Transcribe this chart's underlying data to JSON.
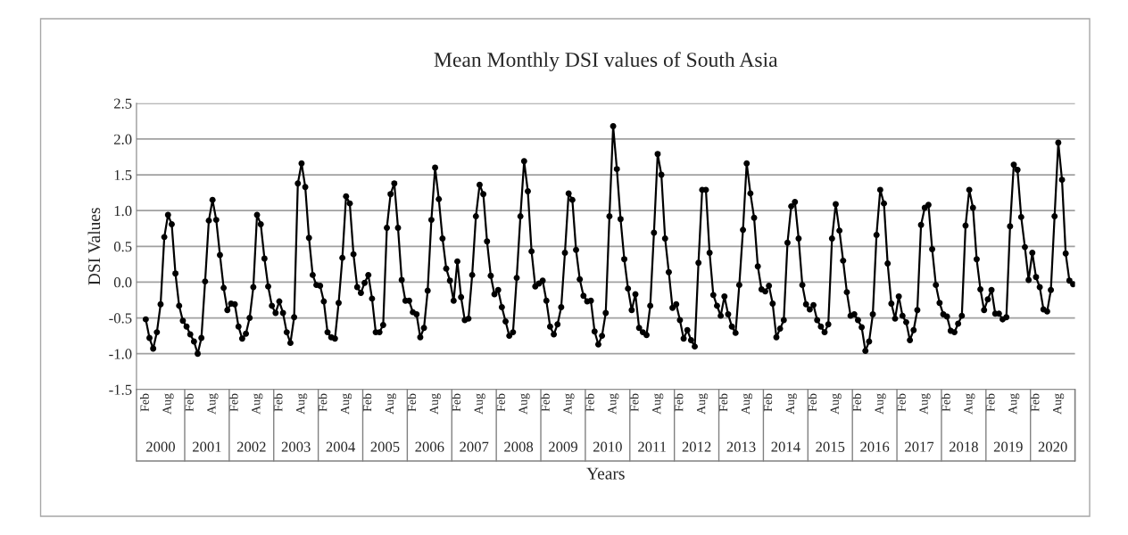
{
  "chart_data": {
    "type": "line",
    "title": "Mean Monthly DSI values of South Asia",
    "xlabel": "Years",
    "ylabel": "DSI Values",
    "categories": [
      "Feb",
      null,
      null,
      null,
      null,
      null,
      "Aug",
      null,
      null,
      null,
      null,
      null,
      "Feb",
      null,
      null,
      null,
      null,
      null,
      "Aug",
      null,
      null,
      null,
      null,
      null,
      "Feb",
      null,
      null,
      null,
      null,
      null,
      "Aug",
      null,
      null,
      null,
      null,
      null,
      "Feb",
      null,
      null,
      null,
      null,
      null,
      "Aug",
      null,
      null,
      null,
      null,
      null,
      "Feb",
      null,
      null,
      null,
      null,
      null,
      "Aug",
      null,
      null,
      null,
      null,
      null,
      "Feb",
      null,
      null,
      null,
      null,
      null,
      "Aug",
      null,
      null,
      null,
      null,
      null,
      "Feb",
      null,
      null,
      null,
      null,
      null,
      "Aug",
      null,
      null,
      null,
      null,
      null,
      "Feb",
      null,
      null,
      null,
      null,
      null,
      "Aug",
      null,
      null,
      null,
      null,
      null,
      "Feb",
      null,
      null,
      null,
      null,
      null,
      "Aug",
      null,
      null,
      null,
      null,
      null,
      "Feb",
      null,
      null,
      null,
      null,
      null,
      "Aug",
      null,
      null,
      null,
      null,
      null,
      "Feb",
      null,
      null,
      null,
      null,
      null,
      "Aug",
      null,
      null,
      null,
      null,
      null,
      "Feb",
      null,
      null,
      null,
      null,
      null,
      "Aug",
      null,
      null,
      null,
      null,
      null,
      "Feb",
      null,
      null,
      null,
      null,
      null,
      "Aug",
      null,
      null,
      null,
      null,
      null,
      "Feb",
      null,
      null,
      null,
      null,
      null,
      "Aug",
      null,
      null,
      null,
      null,
      null,
      "Feb",
      null,
      null,
      null,
      null,
      null,
      "Aug",
      null,
      null,
      null,
      null,
      null,
      "Feb",
      null,
      null,
      null,
      null,
      null,
      "Aug",
      null,
      null,
      null,
      null,
      null,
      "Feb",
      null,
      null,
      null,
      null,
      null,
      "Aug",
      null,
      null,
      null,
      null,
      null,
      "Feb",
      null,
      null,
      null,
      null,
      null,
      "Aug",
      null,
      null,
      null,
      null,
      null,
      "Feb",
      null,
      null,
      null,
      null,
      null,
      "Aug",
      null,
      null,
      null,
      null,
      null,
      "Feb",
      null,
      null,
      null,
      null,
      null,
      "Aug",
      null,
      null,
      null,
      null,
      null,
      "Feb",
      null,
      null,
      null,
      null,
      null,
      "Aug",
      null,
      null,
      null,
      null
    ],
    "series": [
      {
        "color": "#000000",
        "values": [
          -0.52,
          -0.78,
          -0.93,
          -0.7,
          -0.31,
          0.63,
          0.94,
          0.81,
          0.12,
          -0.33,
          -0.54,
          -0.62,
          -0.73,
          -0.83,
          -1.0,
          -0.78,
          0.01,
          0.86,
          1.15,
          0.87,
          0.38,
          -0.08,
          -0.39,
          -0.3,
          -0.31,
          -0.62,
          -0.79,
          -0.72,
          -0.5,
          -0.07,
          0.94,
          0.81,
          0.33,
          -0.06,
          -0.33,
          -0.43,
          -0.27,
          -0.43,
          -0.7,
          -0.85,
          -0.49,
          1.38,
          1.66,
          1.33,
          0.62,
          0.1,
          -0.04,
          -0.05,
          -0.27,
          -0.7,
          -0.77,
          -0.79,
          -0.29,
          0.34,
          1.2,
          1.1,
          0.39,
          -0.07,
          -0.15,
          -0.01,
          0.1,
          -0.23,
          -0.7,
          -0.7,
          -0.6,
          0.76,
          1.23,
          1.38,
          0.76,
          0.03,
          -0.26,
          -0.26,
          -0.42,
          -0.45,
          -0.77,
          -0.64,
          -0.12,
          0.87,
          1.6,
          1.16,
          0.61,
          0.19,
          0.02,
          -0.26,
          0.29,
          -0.21,
          -0.53,
          -0.51,
          0.1,
          0.92,
          1.36,
          1.23,
          0.57,
          0.09,
          -0.17,
          -0.11,
          -0.35,
          -0.55,
          -0.75,
          -0.7,
          0.06,
          0.92,
          1.69,
          1.27,
          0.43,
          -0.06,
          -0.02,
          0.02,
          -0.26,
          -0.62,
          -0.73,
          -0.59,
          -0.35,
          0.41,
          1.24,
          1.15,
          0.45,
          0.04,
          -0.19,
          -0.27,
          -0.26,
          -0.69,
          -0.87,
          -0.75,
          -0.43,
          0.92,
          2.18,
          1.58,
          0.88,
          0.32,
          -0.09,
          -0.39,
          -0.17,
          -0.64,
          -0.7,
          -0.74,
          -0.33,
          0.69,
          1.79,
          1.5,
          0.61,
          0.14,
          -0.36,
          -0.31,
          -0.53,
          -0.79,
          -0.67,
          -0.81,
          -0.9,
          0.27,
          1.29,
          1.29,
          0.41,
          -0.18,
          -0.33,
          -0.47,
          -0.2,
          -0.45,
          -0.62,
          -0.71,
          -0.04,
          0.73,
          1.66,
          1.24,
          0.9,
          0.22,
          -0.1,
          -0.13,
          -0.05,
          -0.3,
          -0.77,
          -0.65,
          -0.53,
          0.55,
          1.06,
          1.12,
          0.61,
          -0.04,
          -0.31,
          -0.38,
          -0.32,
          -0.53,
          -0.62,
          -0.7,
          -0.59,
          0.61,
          1.09,
          0.72,
          0.3,
          -0.14,
          -0.47,
          -0.45,
          -0.53,
          -0.63,
          -0.96,
          -0.83,
          -0.45,
          0.66,
          1.29,
          1.1,
          0.26,
          -0.3,
          -0.51,
          -0.2,
          -0.47,
          -0.56,
          -0.81,
          -0.67,
          -0.39,
          0.8,
          1.04,
          1.08,
          0.46,
          -0.04,
          -0.29,
          -0.45,
          -0.48,
          -0.68,
          -0.7,
          -0.58,
          -0.47,
          0.79,
          1.29,
          1.04,
          0.32,
          -0.1,
          -0.39,
          -0.24,
          -0.11,
          -0.44,
          -0.44,
          -0.52,
          -0.49,
          0.78,
          1.64,
          1.57,
          0.91,
          0.49,
          0.03,
          0.41,
          0.07,
          -0.07,
          -0.38,
          -0.41,
          -0.11,
          0.92,
          1.95,
          1.43,
          0.4,
          0.02,
          -0.03
        ]
      }
    ],
    "annotations": [
      "2000",
      "2001",
      "2002",
      "2003",
      "2004",
      "2005",
      "2006",
      "2007",
      "2008",
      "2009",
      "2010",
      "2011",
      "2012",
      "2013",
      "2014",
      "2015",
      "2016",
      "2017",
      "2018",
      "2019",
      "2020"
    ],
    "ylim": [
      -1.5,
      2.5
    ],
    "yticks": [
      {
        "value": -1.5,
        "label": "-1.5"
      },
      {
        "value": -1.0,
        "label": "-1.0"
      },
      {
        "value": -0.5,
        "label": "-0.5"
      },
      {
        "value": 0.0,
        "label": "0.0"
      },
      {
        "value": 0.5,
        "label": "0.5"
      },
      {
        "value": 1.0,
        "label": "1.0"
      },
      {
        "value": 1.5,
        "label": "1.5"
      },
      {
        "value": 2.0,
        "label": "2.0"
      },
      {
        "value": 2.5,
        "label": "2.5"
      }
    ],
    "grid": "y",
    "marker": "circle",
    "line_style": "solid"
  }
}
